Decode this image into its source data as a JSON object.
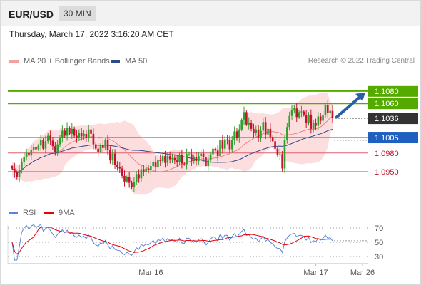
{
  "header": {
    "pair": "EUR/USD",
    "timeframe": "30 MIN"
  },
  "timestamp": "Thursday, March 17, 2022 3:16:20 AM CET",
  "legend": {
    "ma20_label": "MA 20 + Bollinger Bands",
    "ma50_label": "MA 50",
    "credit": "Research © 2022 Trading Central"
  },
  "rsi_legend": {
    "rsi_label": "RSI",
    "ma_label": "9MA"
  },
  "colors": {
    "ma20": "#f08080",
    "ma50": "#2b4b8c",
    "bollinger_fill": "#fcdede",
    "bull": "#2ea02e",
    "bear": "#c8102e",
    "resistance": "#55aa00",
    "support": "#e06070",
    "pivot": "#1f5fbf",
    "current": "#333333",
    "arrow": "#2b5fa5"
  },
  "chart_data": [
    {
      "type": "candlestick",
      "title": "EUR/USD",
      "ylim": [
        1.0905,
        1.1112
      ],
      "x_ticks": [
        {
          "label": "Mar 16",
          "index": 58
        },
        {
          "label": "Mar 17",
          "index": 127
        },
        {
          "label": "Mar 26",
          "index": 148
        }
      ],
      "levels": [
        {
          "value": 1.108,
          "label": "1.1080",
          "kind": "resistance"
        },
        {
          "value": 1.106,
          "label": "1.1060",
          "kind": "resistance"
        },
        {
          "value": 1.1036,
          "label": "1.1036",
          "kind": "current"
        },
        {
          "value": 1.1005,
          "label": "1.1005",
          "kind": "pivot"
        },
        {
          "value": 1.098,
          "label": "1.0980",
          "kind": "support"
        },
        {
          "value": 1.095,
          "label": "1.0950",
          "kind": "support"
        }
      ],
      "close": [
        1.0955,
        1.0948,
        1.0941,
        1.0952,
        1.0966,
        1.0974,
        1.098,
        1.0976,
        1.0985,
        1.099,
        1.0986,
        1.0992,
        1.1001,
        1.0987,
        1.0999,
        1.1008,
        1.1,
        1.0991,
        1.0982,
        1.0994,
        1.1004,
        1.1016,
        1.1008,
        1.1021,
        1.1011,
        1.1019,
        1.1008,
        1.1004,
        1.1013,
        1.1007,
        1.1011,
        1.1004,
        1.1018,
        1.1011,
        1.0994,
        1.0987,
        1.0982,
        1.0993,
        1.0988,
        1.1001,
        1.0985,
        1.0968,
        1.0979,
        1.0961,
        1.0957,
        1.0955,
        1.0943,
        1.0934,
        1.0941,
        1.0932,
        1.0925,
        1.0933,
        1.0946,
        1.0939,
        1.0954,
        1.0949,
        1.0955,
        1.0952,
        1.0959,
        1.0966,
        1.0957,
        1.0969,
        1.0967,
        1.0975,
        1.0964,
        1.0975,
        1.097,
        1.0972,
        1.0968,
        1.0965,
        1.0977,
        1.0963,
        1.0962,
        1.0978,
        1.0978,
        1.0967,
        1.0973,
        1.0967,
        1.0975,
        1.0979,
        1.0973,
        1.0959,
        1.0968,
        1.0978,
        1.0987,
        1.0984,
        1.0975,
        1.1001,
        1.0987,
        1.1002,
        1.1001,
        1.0986,
        1.1001,
        1.1015,
        1.1004,
        1.1018,
        1.1034,
        1.1046,
        1.1026,
        1.1029,
        1.1019,
        1.1013,
        1.1018,
        1.1004,
        1.1016,
        1.103,
        1.101,
        1.1019,
        1.1006,
        1.0999,
        1.0987,
        1.0977,
        1.0978,
        1.0955,
        1.1001,
        1.1022,
        1.104,
        1.1049,
        1.1052,
        1.1038,
        1.1046,
        1.1047,
        1.1041,
        1.1028,
        1.1042,
        1.1019,
        1.1028,
        1.1024,
        1.1039,
        1.1032,
        1.1041,
        1.1057,
        1.1045,
        1.1048,
        1.1036
      ],
      "series": [
        {
          "name": "MA 20 + Bollinger Bands"
        },
        {
          "name": "MA 50"
        }
      ],
      "projection": {
        "from": 1.1036,
        "to": 1.108
      }
    },
    {
      "type": "line",
      "title": "RSI",
      "ylim": [
        20,
        80
      ],
      "y_ticks": [
        70,
        50,
        30
      ],
      "series": [
        {
          "name": "RSI"
        },
        {
          "name": "9MA"
        }
      ]
    }
  ]
}
